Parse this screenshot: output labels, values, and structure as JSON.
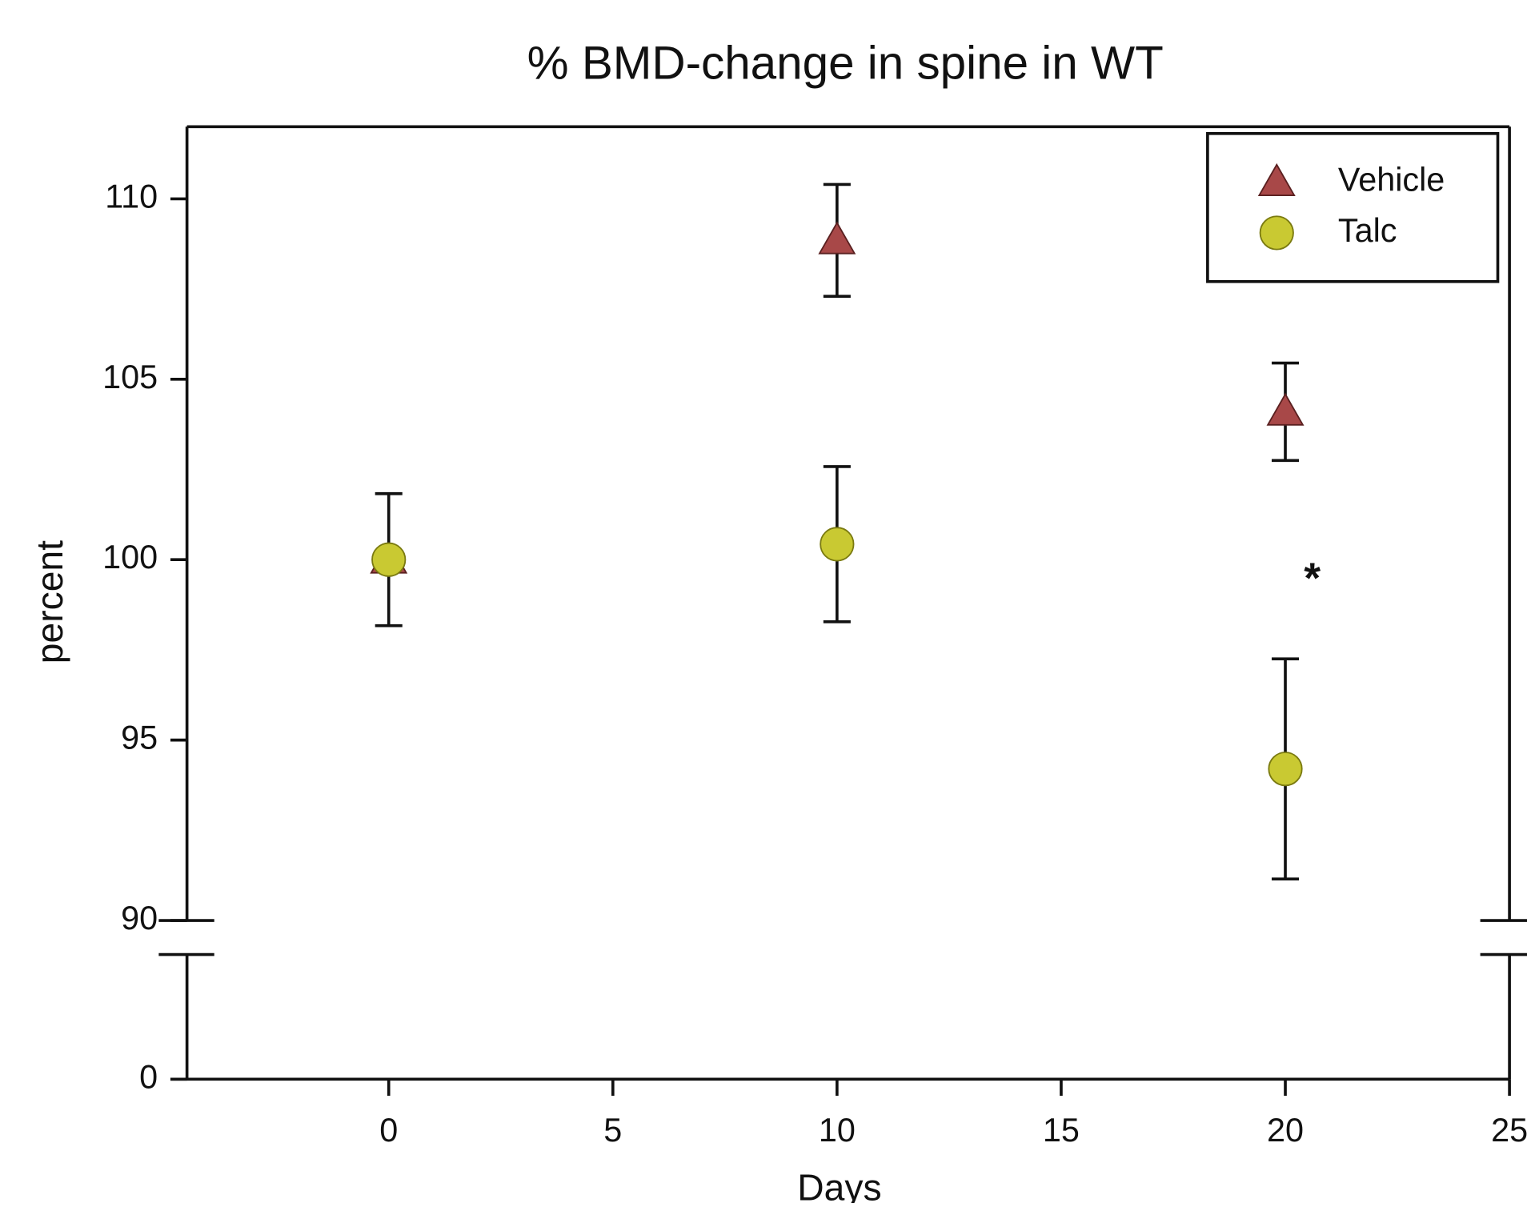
{
  "chart_data": {
    "type": "scatter",
    "title": "% BMD-change in spine in WT",
    "x_label": "Days",
    "y_label": "percent",
    "xlim": [
      -4.5,
      25
    ],
    "xticks": [
      0,
      5,
      10,
      15,
      20,
      25
    ],
    "ylim": [
      90,
      112
    ],
    "yticks": [
      90,
      95,
      100,
      105,
      110
    ],
    "y_break": true,
    "lower_yticks": [
      0
    ],
    "legend": "upper right",
    "series": [
      {
        "name": "Vehicle",
        "color": "#a84848",
        "marker": "triangle",
        "x": [
          0,
          10,
          20
        ],
        "values": [
          100,
          108.85,
          104.1
        ],
        "errors": [
          null,
          1.55,
          1.35
        ]
      },
      {
        "name": "Talc",
        "color": "#c9c932",
        "marker": "circle",
        "x": [
          0,
          10,
          20
        ],
        "values": [
          100,
          100.43,
          94.2
        ],
        "errors": [
          1.83,
          2.15,
          3.05
        ]
      }
    ],
    "annotations": [
      {
        "text": "*",
        "x": 20.6,
        "y": 99.4
      }
    ]
  }
}
